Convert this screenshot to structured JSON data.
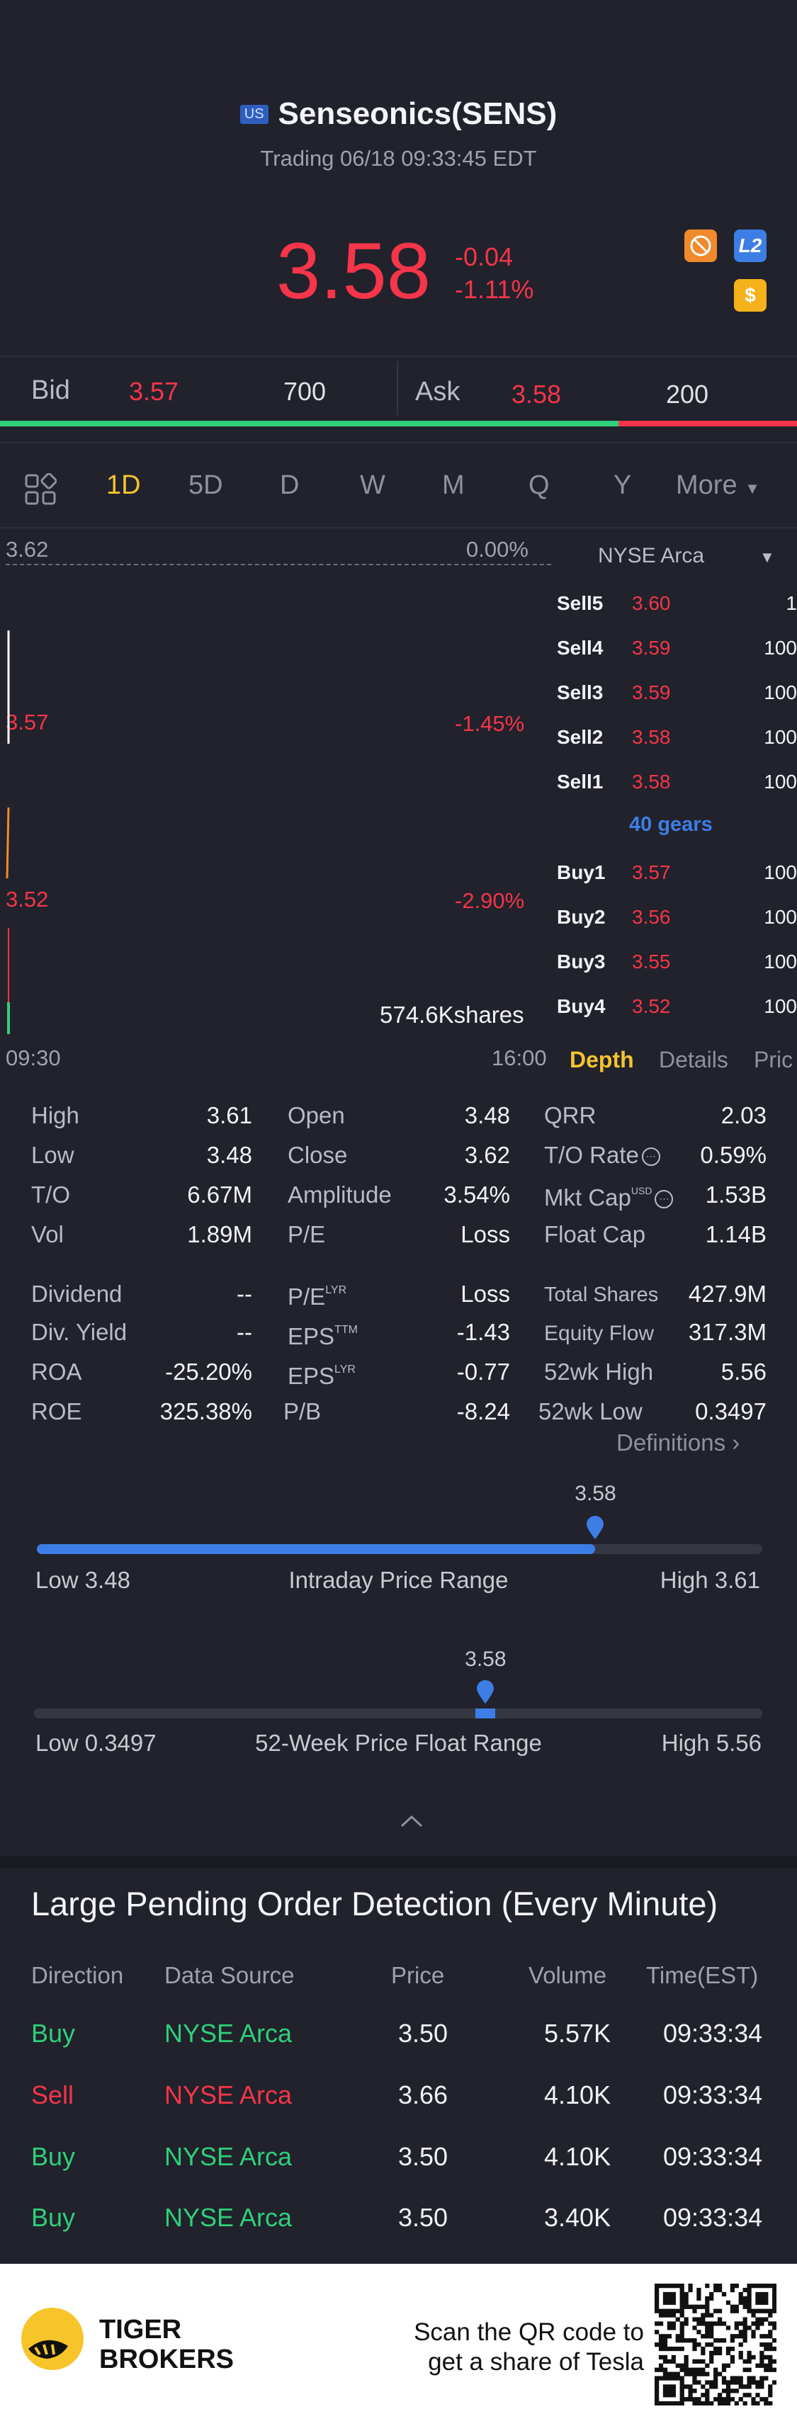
{
  "header": {
    "market_badge": "US",
    "title": "Senseonics(SENS)",
    "subtitle": "Trading 06/18 09:33:45 EDT",
    "price": "3.58",
    "change": "-0.04",
    "change_pct": "-1.11%",
    "badges": {
      "level2": "L2",
      "dollar": "$",
      "orange_icon": "no-short-icon"
    }
  },
  "quote": {
    "bid_label": "Bid",
    "bid_price": "3.57",
    "bid_size": "700",
    "ask_label": "Ask",
    "ask_price": "3.58",
    "ask_size": "200",
    "bid_share": 0.776
  },
  "timeframes": {
    "items": [
      "1D",
      "5D",
      "D",
      "W",
      "M",
      "Q",
      "Y"
    ],
    "active": "1D",
    "more": "More"
  },
  "chart": {
    "top_price": "3.62",
    "top_pct": "0.00%",
    "mid_price": "3.57",
    "mid_pct": "-1.45%",
    "low_price": "3.52",
    "low_pct": "-2.90%",
    "volume_label": "574.6Kshares",
    "time_start": "09:30",
    "time_end": "16:00"
  },
  "orderbook": {
    "exchange": "NYSE Arca",
    "sells": [
      {
        "label": "Sell5",
        "price": "3.60",
        "size": "1"
      },
      {
        "label": "Sell4",
        "price": "3.59",
        "size": "100"
      },
      {
        "label": "Sell3",
        "price": "3.59",
        "size": "100"
      },
      {
        "label": "Sell2",
        "price": "3.58",
        "size": "100"
      },
      {
        "label": "Sell1",
        "price": "3.58",
        "size": "100"
      }
    ],
    "gears": "40 gears",
    "buys": [
      {
        "label": "Buy1",
        "price": "3.57",
        "size": "100"
      },
      {
        "label": "Buy2",
        "price": "3.56",
        "size": "100"
      },
      {
        "label": "Buy3",
        "price": "3.55",
        "size": "100"
      },
      {
        "label": "Buy4",
        "price": "3.52",
        "size": "100"
      }
    ],
    "tabs": [
      "Depth",
      "Details",
      "Pric"
    ]
  },
  "stats": {
    "high_l": "High",
    "high_v": "3.61",
    "low_l": "Low",
    "low_v": "3.48",
    "to_l": "T/O",
    "to_v": "6.67M",
    "vol_l": "Vol",
    "vol_v": "1.89M",
    "open_l": "Open",
    "open_v": "3.48",
    "close_l": "Close",
    "close_v": "3.62",
    "amp_l": "Amplitude",
    "amp_v": "3.54%",
    "pe_l": "P/E",
    "pe_v": "Loss",
    "qrr_l": "QRR",
    "qrr_v": "2.03",
    "tor_l": "T/O Rate",
    "tor_v": "0.59%",
    "mcap_l": "Mkt Cap",
    "mcap_sup": "USD",
    "mcap_v": "1.53B",
    "fcap_l": "Float Cap",
    "fcap_v": "1.14B",
    "div_l": "Dividend",
    "div_v": "--",
    "divy_l": "Div. Yield",
    "divy_v": "--",
    "roa_l": "ROA",
    "roa_v": "-25.20%",
    "roe_l": "ROE",
    "roe_v": "325.38%",
    "pelyr_l": "P/E",
    "pelyr_sup": "LYR",
    "pelyr_v": "Loss",
    "epsttm_l": "EPS",
    "epsttm_sup": "TTM",
    "epsttm_v": "-1.43",
    "epslyr_l": "EPS",
    "epslyr_sup": "LYR",
    "epslyr_v": "-0.77",
    "pb_l": "P/B",
    "pb_v": "-8.24",
    "ts_l": "Total Shares",
    "ts_v": "427.9M",
    "ef_l": "Equity Flow",
    "ef_v": "317.3M",
    "wkh_l": "52wk High",
    "wkh_v": "5.56",
    "wkl_l": "52wk Low",
    "wkl_v": "0.3497",
    "definitions": "Definitions"
  },
  "intraday_range": {
    "current": "3.58",
    "low": "Low 3.48",
    "high": "High 3.61",
    "title": "Intraday Price Range",
    "position": 0.77
  },
  "week52_range": {
    "current": "3.58",
    "low": "Low 0.3497",
    "high": "High 5.56",
    "title": "52-Week Price Float Range",
    "position": 0.62
  },
  "pending_orders": {
    "title": "Large Pending Order Detection (Every Minute)",
    "headers": [
      "Direction",
      "Data Source",
      "Price",
      "Volume",
      "Time(EST)"
    ],
    "rows": [
      {
        "direction": "Buy",
        "source": "NYSE Arca",
        "price": "3.50",
        "volume": "5.57K",
        "time": "09:33:34",
        "side": "buy"
      },
      {
        "direction": "Sell",
        "source": "NYSE Arca",
        "price": "3.66",
        "volume": "4.10K",
        "time": "09:33:34",
        "side": "sell"
      },
      {
        "direction": "Buy",
        "source": "NYSE Arca",
        "price": "3.50",
        "volume": "4.10K",
        "time": "09:33:34",
        "side": "buy"
      },
      {
        "direction": "Buy",
        "source": "NYSE Arca",
        "price": "3.50",
        "volume": "3.40K",
        "time": "09:33:34",
        "side": "buy"
      }
    ]
  },
  "footer": {
    "brand_line1": "TIGER",
    "brand_line2": "BROKERS",
    "qr_line1": "Scan the QR code to",
    "qr_line2": "get a share of Tesla"
  },
  "colors": {
    "up": "#2fcf7b",
    "down": "#f4354a",
    "accent": "#3d7ee6",
    "active": "#f5c330",
    "bg": "#21222b"
  }
}
